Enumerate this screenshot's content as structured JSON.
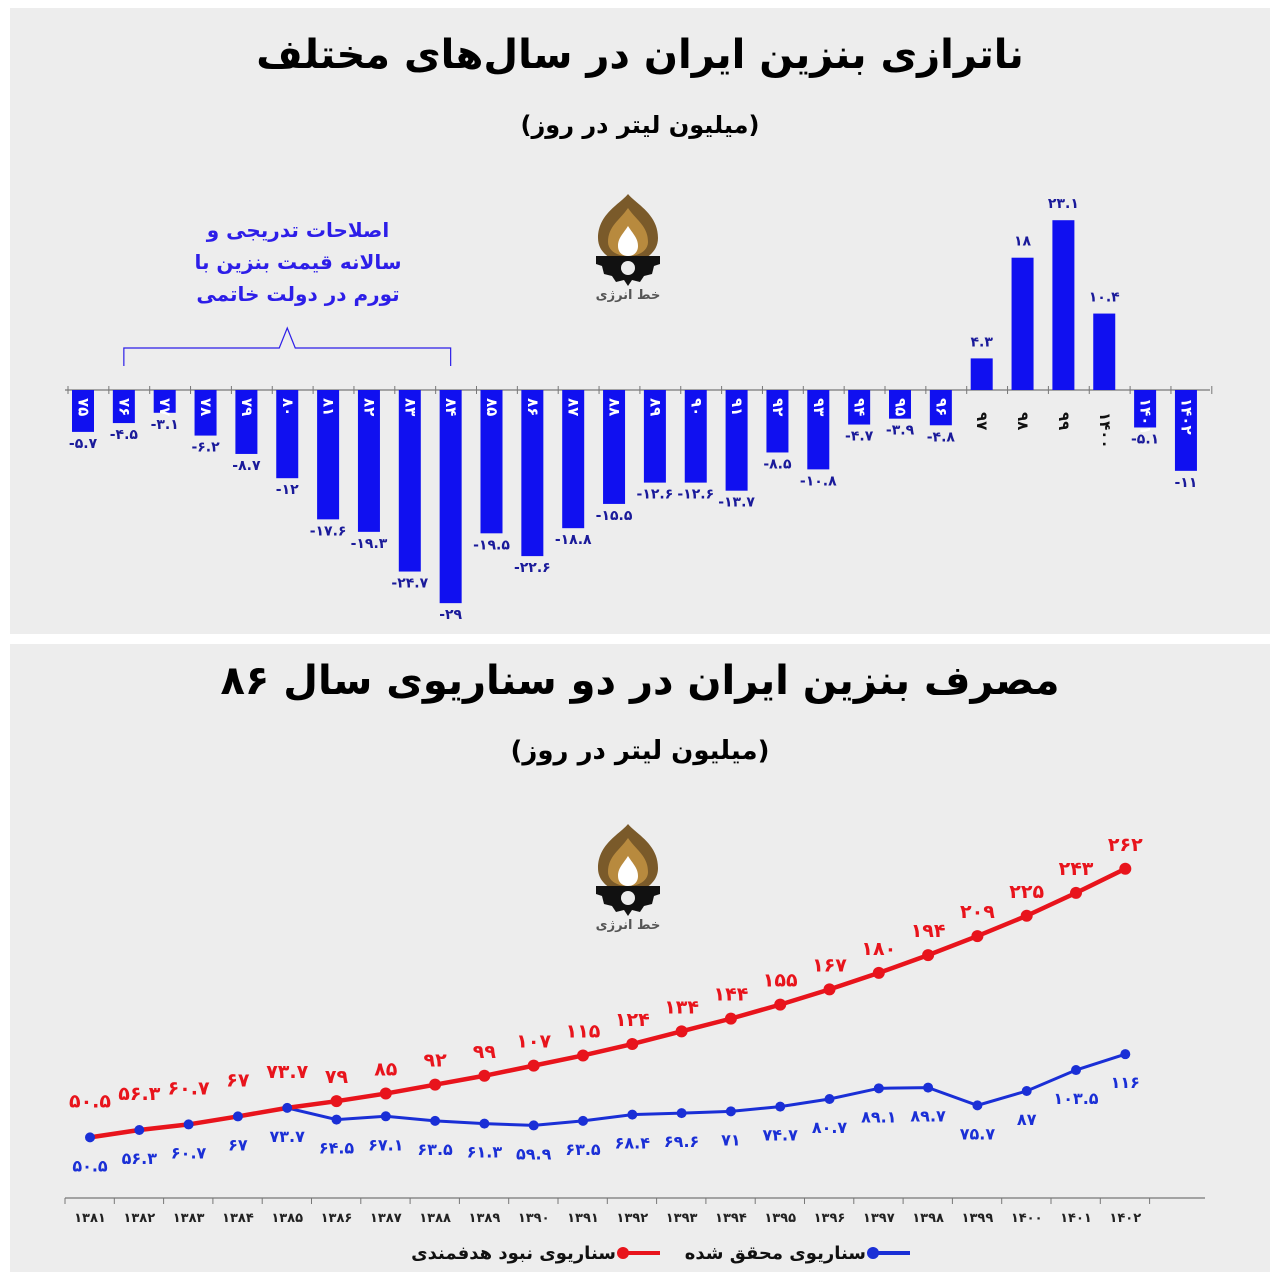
{
  "top_chart": {
    "title": "ناترازی بنزین ایران در سال‌های مختلف",
    "subtitle": "(میلیون لیتر در روز)",
    "annotation": [
      "اصلاحات تدریجی و",
      "سالانه قیمت بنزین با",
      "تورم در دولت خاتمی"
    ],
    "logo_text": "خط انرژی",
    "bar_color": "#1010f0",
    "label_color": "#1a1a9a"
  },
  "bottom_chart": {
    "title": "مصرف بنزین ایران در دو سناریوی سال ۸۶",
    "subtitle": "(میلیون لیتر در روز)",
    "logo_text": "خط انرژی",
    "legend": {
      "red_label": "سناریوی نبود هدفمندی",
      "blue_label": "سناریوی محقق شده"
    },
    "red_color": "#e8141c",
    "blue_color": "#1a2fd6"
  },
  "chart_data": [
    {
      "type": "bar",
      "title": "ناترازی بنزین ایران در سال‌های مختلف",
      "subtitle": "(میلیون لیتر در روز)",
      "categories": [
        "۷۵",
        "۷۶",
        "۷۷",
        "۷۸",
        "۷۹",
        "۸۰",
        "۸۱",
        "۸۲",
        "۸۳",
        "۸۴",
        "۸۵",
        "۸۶",
        "۸۷",
        "۸۸",
        "۸۹",
        "۹۰",
        "۹۱",
        "۹۲",
        "۹۳",
        "۹۴",
        "۹۵",
        "۹۶",
        "۹۷",
        "۹۸",
        "۹۹",
        "۱۴۰۰",
        "۱۴۰۱",
        "۱۴۰۲"
      ],
      "values": [
        -5.7,
        -4.5,
        -3.1,
        -6.2,
        -8.7,
        -12,
        -17.6,
        -19.3,
        -24.7,
        -29,
        -19.5,
        -22.6,
        -18.8,
        -15.5,
        -12.6,
        -12.6,
        -13.7,
        -8.5,
        -10.8,
        -4.7,
        -3.9,
        -4.8,
        4.3,
        18,
        23.1,
        10.4,
        -5.1,
        -11
      ],
      "value_labels": [
        "-۵.۷",
        "-۴.۵",
        "-۳.۱",
        "-۶.۲",
        "-۸.۷",
        "-۱۲",
        "-۱۷.۶",
        "-۱۹.۳",
        "-۲۴.۷",
        "-۲۹",
        "-۱۹.۵",
        "-۲۲.۶",
        "-۱۸.۸",
        "-۱۵.۵",
        "-۱۲.۶",
        "-۱۲.۶",
        "-۱۳.۷",
        "-۸.۵",
        "-۱۰.۸",
        "-۴.۷",
        "-۳.۹",
        "-۴.۸",
        "۴.۳",
        "۱۸",
        "۲۳.۱",
        "۱۰.۴",
        "-۵.۱",
        "-۱۱"
      ],
      "annotation_range": [
        "۷۶",
        "۸۴"
      ]
    },
    {
      "type": "line",
      "title": "مصرف بنزین ایران در دو سناریوی سال ۸۶",
      "subtitle": "(میلیون لیتر در روز)",
      "x": [
        "۱۳۸۱",
        "۱۳۸۲",
        "۱۳۸۳",
        "۱۳۸۴",
        "۱۳۸۵",
        "۱۳۸۶",
        "۱۳۸۷",
        "۱۳۸۸",
        "۱۳۸۹",
        "۱۳۹۰",
        "۱۳۹۱",
        "۱۳۹۲",
        "۱۳۹۳",
        "۱۳۹۴",
        "۱۳۹۵",
        "۱۳۹۶",
        "۱۳۹۷",
        "۱۳۹۸",
        "۱۳۹۹",
        "۱۴۰۰",
        "۱۴۰۱",
        "۱۴۰۲"
      ],
      "series": [
        {
          "name": "سناریوی نبود هدفمندی",
          "values": [
            50.5,
            56.3,
            60.7,
            67,
            73.7,
            79,
            85,
            92,
            99,
            107,
            115,
            124,
            134,
            144,
            155,
            167,
            180,
            194,
            209,
            225,
            243,
            262
          ],
          "labels": [
            "۵۰.۵",
            "۵۶.۳",
            "۶۰.۷",
            "۶۷",
            "۷۳.۷",
            "۷۹",
            "۸۵",
            "۹۲",
            "۹۹",
            "۱۰۷",
            "۱۱۵",
            "۱۲۴",
            "۱۳۴",
            "۱۴۴",
            "۱۵۵",
            "۱۶۷",
            "۱۸۰",
            "۱۹۴",
            "۲۰۹",
            "۲۲۵",
            "۲۴۳",
            "۲۶۲"
          ]
        },
        {
          "name": "سناریوی محقق شده",
          "values": [
            50.5,
            56.3,
            60.7,
            67,
            73.7,
            64.5,
            67.1,
            63.5,
            61.3,
            59.9,
            63.5,
            68.4,
            69.6,
            71,
            74.7,
            80.7,
            89.1,
            89.7,
            75.7,
            87,
            103.5,
            116
          ],
          "labels": [
            "۵۰.۵",
            "۵۶.۳",
            "۶۰.۷",
            "۶۷",
            "۷۳.۷",
            "۶۴.۵",
            "۶۷.۱",
            "۶۳.۵",
            "۶۱.۳",
            "۵۹.۹",
            "۶۳.۵",
            "۶۸.۴",
            "۶۹.۶",
            "۷۱",
            "۷۴.۷",
            "۸۰.۷",
            "۸۹.۱",
            "۸۹.۷",
            "۷۵.۷",
            "۸۷",
            "۱۰۳.۵",
            "۱۱۶"
          ]
        }
      ],
      "legend_position": "bottom"
    }
  ]
}
